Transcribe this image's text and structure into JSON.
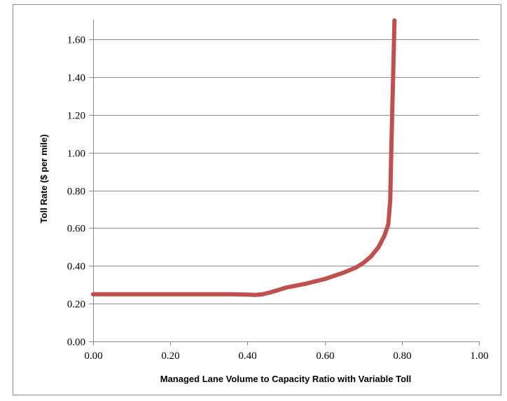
{
  "chart_data": {
    "type": "line",
    "title": "",
    "xlabel": "Managed Lane Volume to Capacity Ratio with Variable Toll",
    "ylabel": "Toll Rate ($ per mile)",
    "xlim": [
      0,
      1.0
    ],
    "ylim": [
      0,
      1.7
    ],
    "x_ticks": [
      "0.00",
      "0.20",
      "0.40",
      "0.60",
      "0.80",
      "1.00"
    ],
    "y_ticks": [
      "0.00",
      "0.20",
      "0.40",
      "0.60",
      "0.80",
      "1.00",
      "1.20",
      "1.40",
      "1.60"
    ],
    "grid": "horizontal",
    "legend": "none",
    "line_color": "#c0504d",
    "series": [
      {
        "x": [
          0.0,
          0.1,
          0.2,
          0.3,
          0.36,
          0.4,
          0.42,
          0.44,
          0.46,
          0.5,
          0.55,
          0.6,
          0.65,
          0.68,
          0.7,
          0.72,
          0.74,
          0.755,
          0.765,
          0.77,
          0.772,
          0.775,
          0.778,
          0.781
        ],
        "y": [
          0.25,
          0.25,
          0.25,
          0.25,
          0.25,
          0.248,
          0.246,
          0.25,
          0.26,
          0.285,
          0.305,
          0.33,
          0.365,
          0.39,
          0.415,
          0.45,
          0.5,
          0.56,
          0.62,
          0.75,
          0.95,
          1.2,
          1.45,
          1.7
        ]
      }
    ]
  }
}
